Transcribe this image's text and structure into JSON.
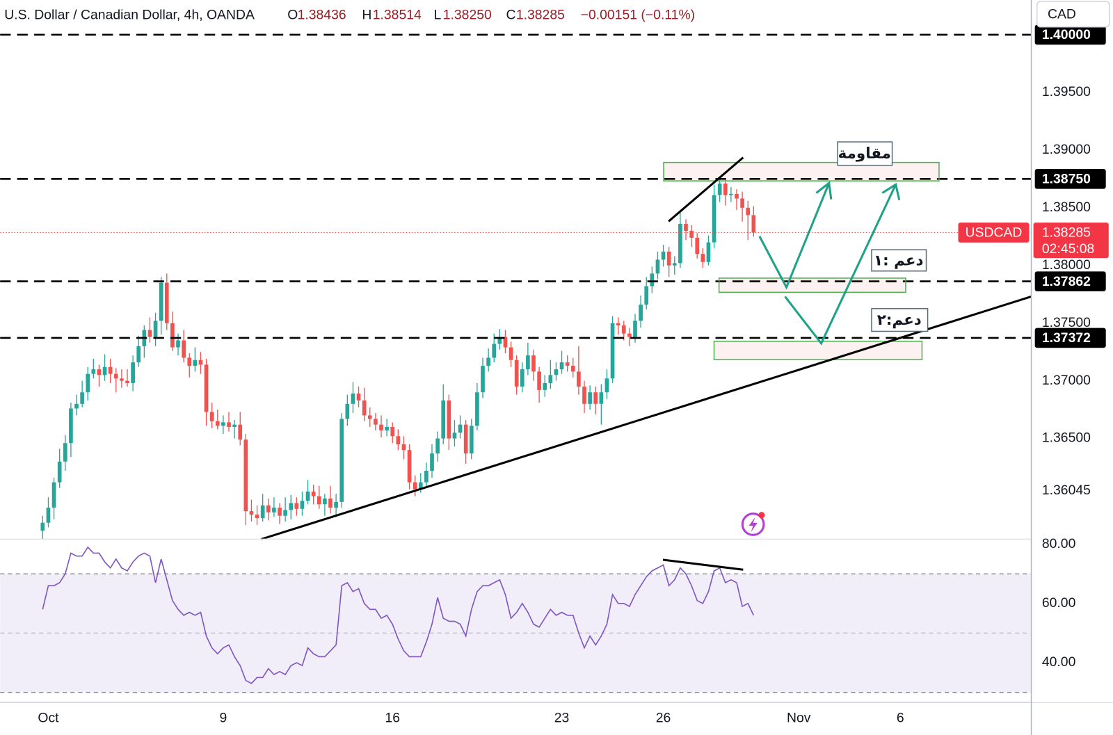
{
  "chart_data": [
    {
      "type": "candlestick",
      "title": "U.S. Dollar / Canadian Dollar, 4h, OANDA",
      "ohlc_names": [
        "O",
        "H",
        "L",
        "C"
      ],
      "last_value_labels": {
        "open": "1.38436",
        "high": "1.38514",
        "low": "1.38250",
        "close": "1.38285"
      },
      "change_label": "−0.00151 (−0.11%)",
      "currency": "CAD",
      "symbol": "USDCAD",
      "countdown": "02:45:08",
      "up_color": "#26a69a",
      "down_color": "#ef5350",
      "open": [
        1.357,
        1.3577,
        1.359,
        1.3612,
        1.363,
        1.3646,
        1.3676,
        1.368,
        1.369,
        1.3706,
        1.371,
        1.3705,
        1.3712,
        1.3706,
        1.3702,
        1.37,
        1.3698,
        1.3716,
        1.373,
        1.3744,
        1.3738,
        1.3752,
        1.3785,
        1.375,
        1.3729,
        1.3735,
        1.372,
        1.3713,
        1.3718,
        1.3714,
        1.3673,
        1.3665,
        1.3661,
        1.3664,
        1.366,
        1.3662,
        1.3649,
        1.3587,
        1.3584,
        1.3581,
        1.3592,
        1.3586,
        1.359,
        1.3583,
        1.3588,
        1.3594,
        1.3589,
        1.3596,
        1.3604,
        1.36,
        1.3593,
        1.3598,
        1.359,
        1.3595,
        1.3667,
        1.368,
        1.3689,
        1.3683,
        1.367,
        1.3667,
        1.3662,
        1.3657,
        1.366,
        1.3652,
        1.3645,
        1.364,
        1.3612,
        1.3606,
        1.3612,
        1.3622,
        1.3637,
        1.365,
        1.3683,
        1.365,
        1.3655,
        1.3662,
        1.3637,
        1.3661,
        1.369,
        1.3713,
        1.372,
        1.3732,
        1.3738,
        1.3729,
        1.3718,
        1.3695,
        1.371,
        1.3722,
        1.3708,
        1.3692,
        1.3698,
        1.3705,
        1.371,
        1.3716,
        1.3713,
        1.3708,
        1.3695,
        1.368,
        1.369,
        1.368,
        1.369,
        1.3702,
        1.375,
        1.3748,
        1.3741,
        1.3738,
        1.3752,
        1.3766,
        1.3782,
        1.3793,
        1.3805,
        1.3812,
        1.38,
        1.3802,
        1.3836,
        1.383,
        1.3824,
        1.381,
        1.3803,
        1.382,
        1.3861,
        1.3871,
        1.3861,
        1.3862,
        1.3858,
        1.385,
        1.38436
      ],
      "high": [
        1.3583,
        1.3599,
        1.3616,
        1.3641,
        1.3653,
        1.3681,
        1.3688,
        1.37,
        1.3712,
        1.3719,
        1.3714,
        1.3723,
        1.3719,
        1.3711,
        1.371,
        1.371,
        1.3722,
        1.3739,
        1.3748,
        1.3755,
        1.3759,
        1.379,
        1.3793,
        1.376,
        1.3741,
        1.3744,
        1.3724,
        1.3729,
        1.3725,
        1.3719,
        1.3681,
        1.3675,
        1.367,
        1.3673,
        1.3666,
        1.3673,
        1.3654,
        1.3597,
        1.3592,
        1.3602,
        1.3598,
        1.3599,
        1.3594,
        1.3599,
        1.3601,
        1.3599,
        1.3604,
        1.3614,
        1.361,
        1.3609,
        1.3602,
        1.3609,
        1.3602,
        1.3672,
        1.3688,
        1.3699,
        1.3695,
        1.3694,
        1.3677,
        1.3672,
        1.367,
        1.3667,
        1.3664,
        1.3658,
        1.3652,
        1.3645,
        1.3618,
        1.362,
        1.3629,
        1.3645,
        1.3656,
        1.3697,
        1.3688,
        1.3666,
        1.367,
        1.3666,
        1.3667,
        1.3698,
        1.372,
        1.3728,
        1.3741,
        1.3745,
        1.3744,
        1.3734,
        1.3722,
        1.3716,
        1.3733,
        1.3727,
        1.3712,
        1.3705,
        1.3718,
        1.3716,
        1.3726,
        1.3722,
        1.372,
        1.373,
        1.37,
        1.3696,
        1.3695,
        1.3697,
        1.371,
        1.3756,
        1.3755,
        1.3752,
        1.3746,
        1.3758,
        1.3774,
        1.379,
        1.3799,
        1.3812,
        1.3818,
        1.3816,
        1.3808,
        1.3846,
        1.384,
        1.3835,
        1.3828,
        1.3815,
        1.3826,
        1.387,
        1.3876,
        1.3874,
        1.3868,
        1.3866,
        1.3864,
        1.3856,
        1.38514
      ],
      "low": [
        1.3563,
        1.3573,
        1.358,
        1.3607,
        1.3622,
        1.3634,
        1.367,
        1.3677,
        1.3683,
        1.3702,
        1.3695,
        1.37,
        1.3698,
        1.369,
        1.3694,
        1.3695,
        1.3691,
        1.3712,
        1.372,
        1.3733,
        1.373,
        1.374,
        1.3744,
        1.3726,
        1.3722,
        1.3716,
        1.3703,
        1.3708,
        1.3706,
        1.3661,
        1.3659,
        1.3658,
        1.3654,
        1.3656,
        1.365,
        1.3644,
        1.3575,
        1.3578,
        1.3575,
        1.3578,
        1.3579,
        1.3582,
        1.3576,
        1.3578,
        1.358,
        1.3583,
        1.3583,
        1.3593,
        1.3593,
        1.3589,
        1.3583,
        1.3585,
        1.3582,
        1.359,
        1.3661,
        1.3672,
        1.3677,
        1.3665,
        1.366,
        1.3657,
        1.3651,
        1.3652,
        1.3646,
        1.364,
        1.3632,
        1.3606,
        1.36,
        1.3603,
        1.3607,
        1.3616,
        1.363,
        1.3645,
        1.364,
        1.3643,
        1.365,
        1.3628,
        1.3632,
        1.3657,
        1.3685,
        1.3708,
        1.3716,
        1.3727,
        1.3724,
        1.3712,
        1.3688,
        1.369,
        1.3705,
        1.37,
        1.3681,
        1.3686,
        1.3693,
        1.37,
        1.3706,
        1.3708,
        1.3703,
        1.3688,
        1.3672,
        1.3675,
        1.3671,
        1.3662,
        1.3684,
        1.3698,
        1.374,
        1.3735,
        1.373,
        1.3733,
        1.3746,
        1.3762,
        1.3776,
        1.3788,
        1.3799,
        1.379,
        1.3792,
        1.3798,
        1.3822,
        1.3816,
        1.3806,
        1.3798,
        1.38,
        1.3815,
        1.3855,
        1.3852,
        1.3855,
        1.3848,
        1.3838,
        1.3822,
        1.3825
      ],
      "close": [
        1.3577,
        1.359,
        1.3612,
        1.363,
        1.3646,
        1.3676,
        1.368,
        1.369,
        1.3706,
        1.371,
        1.3705,
        1.3712,
        1.3706,
        1.3702,
        1.37,
        1.3698,
        1.3716,
        1.373,
        1.3744,
        1.3738,
        1.3752,
        1.3785,
        1.375,
        1.3729,
        1.3735,
        1.372,
        1.3713,
        1.3718,
        1.3714,
        1.3673,
        1.3665,
        1.3661,
        1.3664,
        1.366,
        1.3662,
        1.3649,
        1.3587,
        1.3584,
        1.3581,
        1.3592,
        1.3586,
        1.359,
        1.3583,
        1.3588,
        1.3594,
        1.3589,
        1.3596,
        1.3604,
        1.36,
        1.3593,
        1.3598,
        1.359,
        1.3595,
        1.3667,
        1.368,
        1.3689,
        1.3683,
        1.367,
        1.3667,
        1.3662,
        1.3657,
        1.366,
        1.3652,
        1.3645,
        1.364,
        1.3612,
        1.3606,
        1.3612,
        1.3622,
        1.3637,
        1.365,
        1.3683,
        1.365,
        1.3655,
        1.3662,
        1.3637,
        1.3661,
        1.369,
        1.3713,
        1.372,
        1.3732,
        1.3738,
        1.3729,
        1.3718,
        1.3695,
        1.371,
        1.3722,
        1.3708,
        1.3692,
        1.3698,
        1.3705,
        1.371,
        1.3716,
        1.3713,
        1.3708,
        1.3695,
        1.368,
        1.369,
        1.368,
        1.369,
        1.3702,
        1.375,
        1.3748,
        1.3741,
        1.3738,
        1.3752,
        1.3766,
        1.3782,
        1.3793,
        1.3805,
        1.3812,
        1.38,
        1.3802,
        1.3836,
        1.383,
        1.3824,
        1.381,
        1.3803,
        1.382,
        1.3861,
        1.3871,
        1.3861,
        1.3862,
        1.3858,
        1.385,
        1.38436,
        1.38285
      ],
      "xlim": [
        -7.55,
        175.22
      ],
      "xticks": [
        {
          "value": 1,
          "label": "Oct"
        },
        {
          "value": 32,
          "label": "9"
        },
        {
          "value": 62,
          "label": "16"
        },
        {
          "value": 92,
          "label": "23"
        },
        {
          "value": 110,
          "label": "26"
        },
        {
          "value": 134,
          "label": "Nov"
        },
        {
          "value": 152,
          "label": "6"
        }
      ],
      "ylim": [
        1.35627,
        1.40301
      ],
      "yticks": [
        {
          "value": 1.365,
          "label": "1.36500"
        },
        {
          "value": 1.37,
          "label": "1.37000"
        },
        {
          "value": 1.375,
          "label": "1.37500"
        },
        {
          "value": 1.38,
          "label": "1.38000"
        },
        {
          "value": 1.385,
          "label": "1.38500"
        },
        {
          "value": 1.39,
          "label": "1.39000"
        },
        {
          "value": 1.395,
          "label": "1.39500"
        }
      ],
      "grid": false,
      "levels": [
        {
          "value": 1.4,
          "label": "1.40000"
        },
        {
          "value": 1.3875,
          "label": "1.38750"
        },
        {
          "value": 1.37862,
          "label": "1.37862"
        },
        {
          "value": 1.37372,
          "label": "1.37372"
        }
      ],
      "marker_label": {
        "value": 1.36045,
        "label": "1.36045"
      },
      "annotations": [
        "مقاومة",
        "دعم :١",
        "دعم:٢"
      ]
    },
    {
      "type": "line",
      "color": "#7e57c2",
      "values": [
        58,
        66,
        66,
        67,
        70,
        77,
        76,
        76,
        79,
        77,
        77,
        74,
        72,
        75,
        72,
        71,
        74,
        76,
        77,
        76,
        67,
        75,
        68,
        61,
        58,
        56,
        57,
        56,
        57,
        49,
        45,
        43,
        45,
        46,
        42,
        39,
        34,
        33,
        35,
        35,
        38,
        36,
        37,
        36,
        39,
        40,
        39,
        45,
        43,
        42,
        42,
        44,
        46,
        66,
        67,
        64,
        65,
        60,
        58,
        58,
        55,
        56,
        53,
        48,
        44,
        42,
        42,
        42,
        47,
        53,
        62,
        55,
        54,
        54,
        53,
        49,
        58,
        64,
        66,
        66,
        67,
        68,
        63,
        55,
        57,
        60,
        57,
        53,
        52,
        55,
        58,
        56,
        57,
        56,
        56,
        50,
        45,
        49,
        46,
        49,
        53,
        63,
        60,
        60,
        59,
        63,
        66,
        69,
        71,
        72,
        73,
        66,
        68,
        72,
        70,
        66,
        61,
        60,
        64,
        71,
        72,
        67,
        68,
        67,
        59,
        60,
        56
      ],
      "ylim": [
        26.6,
        81.7
      ],
      "yticks": [
        {
          "value": 40,
          "label": "40.00"
        },
        {
          "value": 60,
          "label": "60.00"
        },
        {
          "value": 80,
          "label": "80.00"
        }
      ],
      "band": [
        30,
        70
      ],
      "midline": 50,
      "band_color": "rgba(126,87,194,0.10)"
    }
  ]
}
